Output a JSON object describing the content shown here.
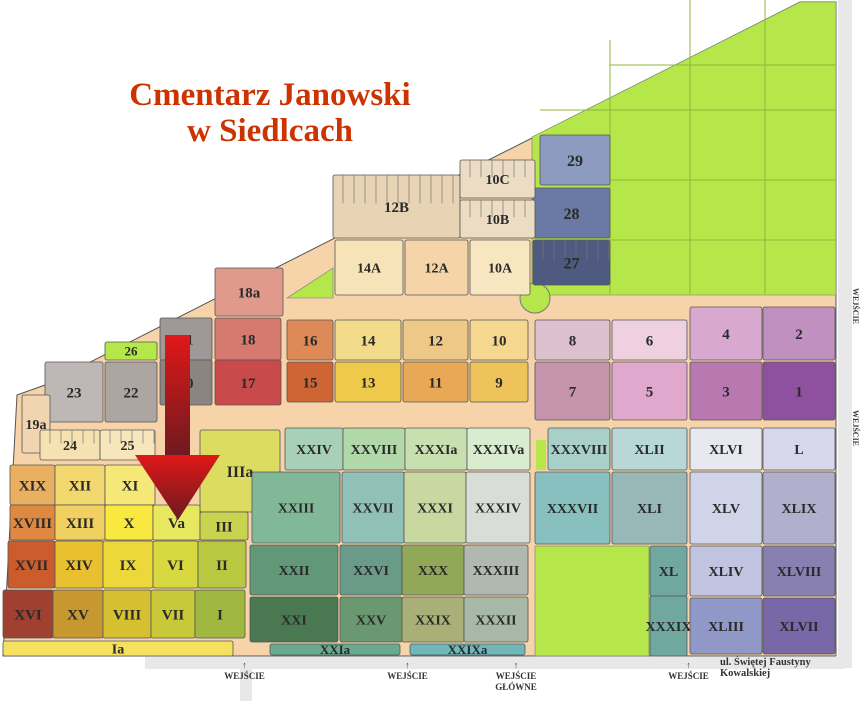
{
  "title": {
    "line1": "Cmentarz Janowski",
    "line2": "w Siedlcach"
  },
  "street": "ul. Świętej Faustyny Kowalskiej",
  "entrances": [
    {
      "label": "WEJŚCIE"
    },
    {
      "label": "WEJŚCIE"
    },
    {
      "label": "WEJŚCIE GŁÓWNE"
    },
    {
      "label": "WEJŚCIE"
    }
  ],
  "side_entrances": [
    "WEJŚCIE",
    "WEJŚCIE"
  ],
  "colors": {
    "path": "#f6d3a9",
    "grass": "#b5e64a",
    "title": "#cc3300",
    "arrow": "#b01818",
    "road": "#e8e8e8"
  },
  "highlighted_section": "Va",
  "sections": [
    {
      "label": "29",
      "color": "#8e9bc0"
    },
    {
      "label": "28",
      "color": "#6b7aa5"
    },
    {
      "label": "27",
      "color": "#4e5a80"
    },
    {
      "label": "12B",
      "color": "#e8d3b5"
    },
    {
      "label": "10C",
      "color": "#ecdcc4"
    },
    {
      "label": "10B",
      "color": "#ecdcc4"
    },
    {
      "label": "14A",
      "color": "#f6e3b8"
    },
    {
      "label": "12A",
      "color": "#f5d5a8"
    },
    {
      "label": "10A",
      "color": "#f8e6c0"
    },
    {
      "label": "18a",
      "color": "#df9a8c"
    },
    {
      "label": "18",
      "color": "#d67a70"
    },
    {
      "label": "17",
      "color": "#c84a4a"
    },
    {
      "label": "21",
      "color": "#a09898"
    },
    {
      "label": "20",
      "color": "#8c8480"
    },
    {
      "label": "26",
      "color": "#b5e64a"
    },
    {
      "label": "22",
      "color": "#aca5a2"
    },
    {
      "label": "23",
      "color": "#bdb8b5"
    },
    {
      "label": "19a",
      "color": "#f0d5b0"
    },
    {
      "label": "24",
      "color": "#f5e2b0"
    },
    {
      "label": "25",
      "color": "#f7e6bc"
    },
    {
      "label": "16",
      "color": "#de8a58"
    },
    {
      "label": "15",
      "color": "#cf6535"
    },
    {
      "label": "14",
      "color": "#f2dc8c"
    },
    {
      "label": "13",
      "color": "#eec94a"
    },
    {
      "label": "12",
      "color": "#eec886"
    },
    {
      "label": "11",
      "color": "#e8a855"
    },
    {
      "label": "10",
      "color": "#f5d790"
    },
    {
      "label": "9",
      "color": "#eec35a"
    },
    {
      "label": "8",
      "color": "#dcc0d0"
    },
    {
      "label": "6",
      "color": "#eed0e0"
    },
    {
      "label": "4",
      "color": "#d8a8d0"
    },
    {
      "label": "2",
      "color": "#c090c0"
    },
    {
      "label": "7",
      "color": "#c494ac"
    },
    {
      "label": "5",
      "color": "#e0a8cc"
    },
    {
      "label": "3",
      "color": "#b878b0"
    },
    {
      "label": "1",
      "color": "#9050a0"
    },
    {
      "label": "IIIa",
      "color": "#dcdd60"
    },
    {
      "label": "XIX",
      "color": "#e8b060"
    },
    {
      "label": "XII",
      "color": "#f3d870"
    },
    {
      "label": "XI",
      "color": "#f5e878"
    },
    {
      "label": "XVIII",
      "color": "#de8840"
    },
    {
      "label": "XIII",
      "color": "#f0d060"
    },
    {
      "label": "X",
      "color": "#f8e840"
    },
    {
      "label": "Va",
      "color": "#e8e860"
    },
    {
      "label": "III",
      "color": "#c8d450"
    },
    {
      "label": "XVII",
      "color": "#cc5c2c"
    },
    {
      "label": "XIV",
      "color": "#e8c030"
    },
    {
      "label": "IX",
      "color": "#ecd838"
    },
    {
      "label": "VI",
      "color": "#d8d840"
    },
    {
      "label": "II",
      "color": "#b8c840"
    },
    {
      "label": "XVI",
      "color": "#a04030"
    },
    {
      "label": "XV",
      "color": "#c89830"
    },
    {
      "label": "VIII",
      "color": "#d4c030"
    },
    {
      "label": "VII",
      "color": "#c8c838"
    },
    {
      "label": "I",
      "color": "#a0b840"
    },
    {
      "label": "Ia",
      "color": "#f5e060"
    },
    {
      "label": "XXIV",
      "color": "#a8d0b8"
    },
    {
      "label": "XXVIII",
      "color": "#b0d8a8"
    },
    {
      "label": "XXXIa",
      "color": "#c8e0b0"
    },
    {
      "label": "XXXIVa",
      "color": "#d8ecd0"
    },
    {
      "label": "XXIII",
      "color": "#80b898"
    },
    {
      "label": "XXVII",
      "color": "#90c0b8"
    },
    {
      "label": "XXXI",
      "color": "#c8d8a0"
    },
    {
      "label": "XXXIV",
      "color": "#d8ddd8"
    },
    {
      "label": "XXII",
      "color": "#609878"
    },
    {
      "label": "XXVI",
      "color": "#6a9a88"
    },
    {
      "label": "XXX",
      "color": "#90a858"
    },
    {
      "label": "XXXIII",
      "color": "#b0b8b0"
    },
    {
      "label": "XXI",
      "color": "#4a7850"
    },
    {
      "label": "XXV",
      "color": "#6a9870"
    },
    {
      "label": "XXIX",
      "color": "#a8b078"
    },
    {
      "label": "XXXII",
      "color": "#a8b8a8"
    },
    {
      "label": "XXIa",
      "color": "#6aaa90"
    },
    {
      "label": "XXIXa",
      "color": "#70b8b8"
    },
    {
      "label": "XXXVIII",
      "color": "#a8d0c8"
    },
    {
      "label": "XLII",
      "color": "#b8d8d8"
    },
    {
      "label": "XLVI",
      "color": "#e8e8f0"
    },
    {
      "label": "L",
      "color": "#d8d8ec"
    },
    {
      "label": "XXXVII",
      "color": "#88c0c0"
    },
    {
      "label": "XLI",
      "color": "#98b8b8"
    },
    {
      "label": "XLV",
      "color": "#d0d4e8"
    },
    {
      "label": "XLIX",
      "color": "#b0b0cc"
    },
    {
      "label": "XL",
      "color": "#70a8a0"
    },
    {
      "label": "XXXIX",
      "color": "#70a8a0"
    },
    {
      "label": "XLIV",
      "color": "#c0c4e0"
    },
    {
      "label": "XLVIII",
      "color": "#8880b0"
    },
    {
      "label": "XLIII",
      "color": "#9098c8"
    },
    {
      "label": "XLVII",
      "color": "#7868a8"
    }
  ]
}
